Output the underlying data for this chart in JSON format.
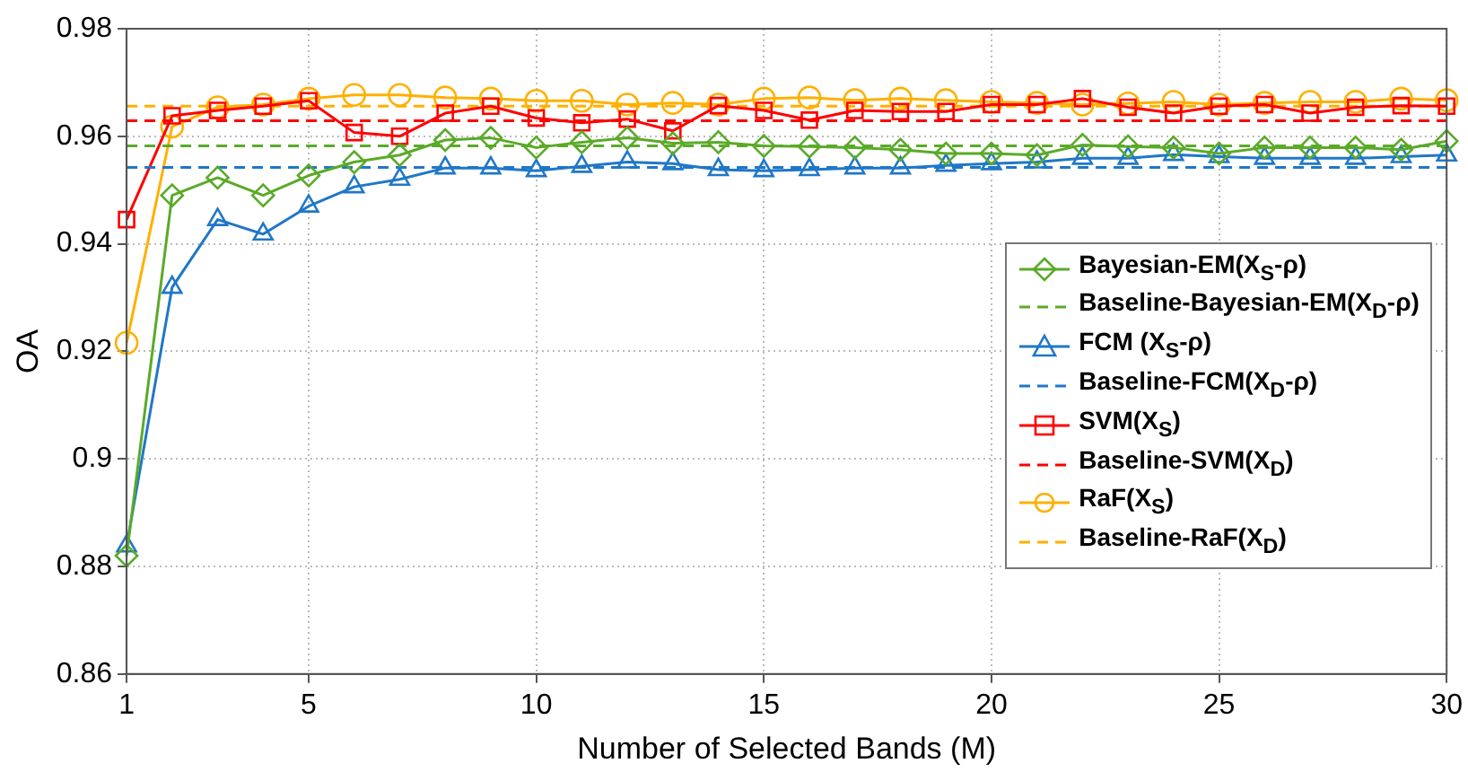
{
  "chart_data": {
    "type": "line",
    "xlabel": "Number of Selected Bands (M)",
    "ylabel": "OA",
    "x": [
      1,
      2,
      3,
      4,
      5,
      6,
      7,
      8,
      9,
      10,
      11,
      12,
      13,
      14,
      15,
      16,
      17,
      18,
      19,
      20,
      21,
      22,
      23,
      24,
      25,
      26,
      27,
      28,
      29,
      30
    ],
    "xlim": [
      1,
      30
    ],
    "xticks": [
      1,
      5,
      10,
      15,
      20,
      25,
      30
    ],
    "ylim": [
      0.86,
      0.98
    ],
    "yticks": [
      0.86,
      0.88,
      0.9,
      0.92,
      0.94,
      0.96,
      0.98
    ],
    "grid": true,
    "legend": "right",
    "series": [
      {
        "name": "Bayesian-EM(X$_{S}$-ρ)",
        "color": "#5aaa28",
        "marker": "diamond",
        "line_style": "solid",
        "values": [
          0.882,
          0.949,
          0.9523,
          0.949,
          0.9527,
          0.9552,
          0.9565,
          0.9593,
          0.9597,
          0.9579,
          0.9589,
          0.9597,
          0.9587,
          0.9589,
          0.9582,
          0.9581,
          0.9579,
          0.9575,
          0.9568,
          0.9568,
          0.9565,
          0.9584,
          0.9581,
          0.9579,
          0.9568,
          0.9579,
          0.9579,
          0.9579,
          0.9575,
          0.9591
        ]
      },
      {
        "name": "Baseline-Bayesian-EM(X$_{D}$-ρ)",
        "color": "#5aaa28",
        "marker": "none",
        "line_style": "dashed",
        "values": [
          0.9582,
          0.9582,
          0.9582,
          0.9582,
          0.9582,
          0.9582,
          0.9582,
          0.9582,
          0.9582,
          0.9582,
          0.9582,
          0.9582,
          0.9582,
          0.9582,
          0.9582,
          0.9582,
          0.9582,
          0.9582,
          0.9582,
          0.9582,
          0.9582,
          0.9582,
          0.9582,
          0.9582,
          0.9582,
          0.9582,
          0.9582,
          0.9582,
          0.9582,
          0.9582
        ]
      },
      {
        "name": "FCM (X$_{S}$-ρ)",
        "color": "#1f77c8",
        "marker": "triangle",
        "line_style": "solid",
        "values": [
          0.8838,
          0.9319,
          0.9445,
          0.9418,
          0.947,
          0.9506,
          0.952,
          0.9541,
          0.9541,
          0.9536,
          0.9544,
          0.9552,
          0.9549,
          0.9538,
          0.9536,
          0.9538,
          0.9541,
          0.9541,
          0.9546,
          0.9549,
          0.9552,
          0.9559,
          0.9559,
          0.9566,
          0.9562,
          0.9559,
          0.9559,
          0.9559,
          0.9562,
          0.9565
        ]
      },
      {
        "name": "Baseline-FCM(X$_{D}$-ρ)",
        "color": "#1f77c8",
        "marker": "none",
        "line_style": "dashed",
        "values": [
          0.9542,
          0.9542,
          0.9542,
          0.9542,
          0.9542,
          0.9542,
          0.9542,
          0.9542,
          0.9542,
          0.9542,
          0.9542,
          0.9542,
          0.9542,
          0.9542,
          0.9542,
          0.9542,
          0.9542,
          0.9542,
          0.9542,
          0.9542,
          0.9542,
          0.9542,
          0.9542,
          0.9542,
          0.9542,
          0.9542,
          0.9542,
          0.9542,
          0.9542,
          0.9542
        ]
      },
      {
        "name": "SVM(X$_{S}$)",
        "color": "#ff0000",
        "marker": "square",
        "line_style": "solid",
        "values": [
          0.9445,
          0.9638,
          0.9648,
          0.9656,
          0.9666,
          0.9607,
          0.96,
          0.9643,
          0.9656,
          0.9634,
          0.9625,
          0.9632,
          0.961,
          0.9657,
          0.9648,
          0.963,
          0.9648,
          0.9646,
          0.9646,
          0.9659,
          0.9659,
          0.967,
          0.9654,
          0.9643,
          0.9656,
          0.9659,
          0.9643,
          0.9654,
          0.9657,
          0.9656
        ]
      },
      {
        "name": "Baseline-SVM(X$_{D}$)",
        "color": "#ff0000",
        "marker": "none",
        "line_style": "dashed",
        "values": [
          0.9629,
          0.9629,
          0.9629,
          0.9629,
          0.9629,
          0.9629,
          0.9629,
          0.9629,
          0.9629,
          0.9629,
          0.9629,
          0.9629,
          0.9629,
          0.9629,
          0.9629,
          0.9629,
          0.9629,
          0.9629,
          0.9629,
          0.9629,
          0.9629,
          0.9629,
          0.9629,
          0.9629,
          0.9629,
          0.9629,
          0.9629,
          0.9629,
          0.9629,
          0.9629
        ]
      },
      {
        "name": "RaF(X$_{S}$)",
        "color": "#ffb000",
        "marker": "circle",
        "line_style": "solid",
        "values": [
          0.9216,
          0.9618,
          0.9654,
          0.9659,
          0.967,
          0.9677,
          0.9677,
          0.9672,
          0.967,
          0.9666,
          0.9666,
          0.9659,
          0.9662,
          0.9659,
          0.967,
          0.9672,
          0.9667,
          0.967,
          0.9667,
          0.9664,
          0.9662,
          0.9659,
          0.9661,
          0.9664,
          0.9659,
          0.9662,
          0.9664,
          0.9664,
          0.967,
          0.9667
        ]
      },
      {
        "name": "Baseline-RaF(X$_{D}$)",
        "color": "#ffb000",
        "marker": "none",
        "line_style": "dashed",
        "values": [
          0.9656,
          0.9656,
          0.9656,
          0.9656,
          0.9656,
          0.9656,
          0.9656,
          0.9656,
          0.9656,
          0.9656,
          0.9656,
          0.9656,
          0.9656,
          0.9656,
          0.9656,
          0.9656,
          0.9656,
          0.9656,
          0.9656,
          0.9656,
          0.9656,
          0.9656,
          0.9656,
          0.9656,
          0.9656,
          0.9656,
          0.9656,
          0.9656,
          0.9656,
          0.9656
        ]
      }
    ]
  }
}
